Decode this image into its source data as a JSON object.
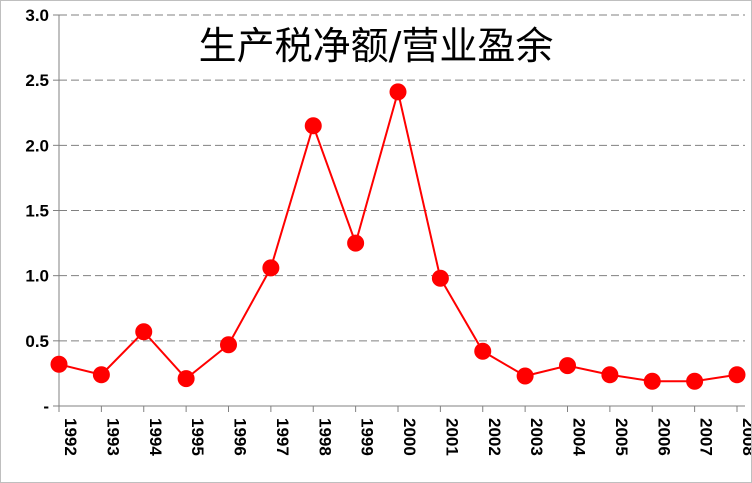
{
  "chart_data": {
    "type": "line",
    "title": "生产税净额/营业盈余",
    "xlabel": "",
    "ylabel": "",
    "categories": [
      "1992",
      "1993",
      "1994",
      "1995",
      "1996",
      "1997",
      "1998",
      "1999",
      "2000",
      "2001",
      "2002",
      "2003",
      "2004",
      "2005",
      "2006",
      "2007",
      "2008"
    ],
    "series": [
      {
        "values": [
          0.32,
          0.24,
          0.57,
          0.21,
          0.47,
          1.06,
          2.15,
          1.25,
          2.41,
          0.98,
          0.42,
          0.23,
          0.31,
          0.24,
          0.19,
          0.19,
          0.24
        ]
      }
    ],
    "ylim": [
      0,
      3.0
    ],
    "yticks": [
      0,
      0.5,
      1.0,
      1.5,
      2.0,
      2.5,
      3.0
    ],
    "ytick_labels": [
      "-",
      "0.5",
      "1.0",
      "1.5",
      "2.0",
      "2.5",
      "3.0"
    ],
    "grid": "horizontal dashed",
    "legend": "none",
    "colors": {
      "series": "#ff0000",
      "grid": "#808080",
      "axis": "#808080"
    }
  }
}
